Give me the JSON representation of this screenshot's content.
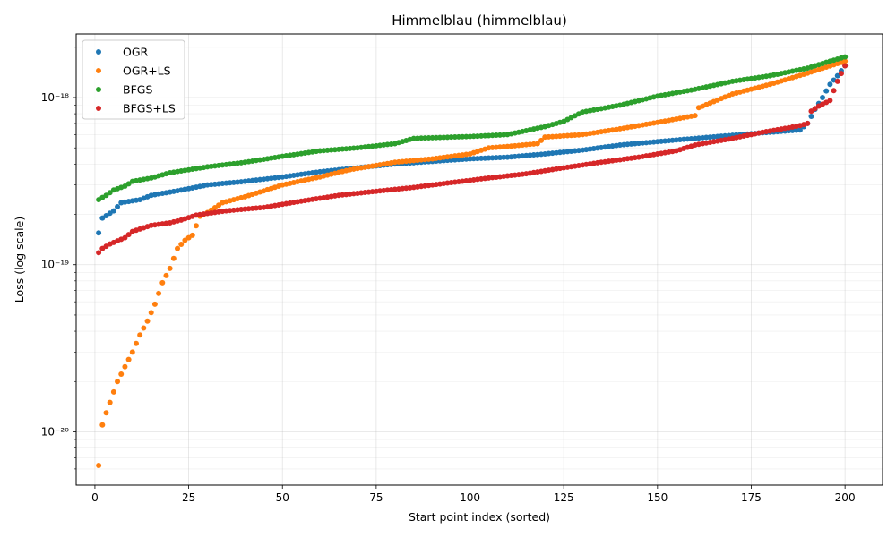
{
  "chart_data": {
    "type": "scatter",
    "title": "Himmelblau (himmelblau)",
    "xlabel": "Start point index (sorted)",
    "ylabel": "Loss (log scale)",
    "yscale": "log",
    "xlim": [
      -5,
      210
    ],
    "ylim": [
      4.8e-21,
      2.4e-18
    ],
    "xticks": [
      0,
      25,
      50,
      75,
      100,
      125,
      150,
      175,
      200
    ],
    "yticks": [
      {
        "value": 1e-20,
        "label": "10⁻²⁰"
      },
      {
        "value": 1e-19,
        "label": "10⁻¹⁹"
      },
      {
        "value": 1e-18,
        "label": "10⁻¹⁸"
      }
    ],
    "grid": true,
    "legend_position": "top-left",
    "series": [
      {
        "name": "OGR",
        "color": "#1f77b4",
        "keypoints": [
          [
            1,
            1.55e-19
          ],
          [
            2,
            1.9e-19
          ],
          [
            5,
            2.1e-19
          ],
          [
            7,
            2.35e-19
          ],
          [
            12,
            2.45e-19
          ],
          [
            15,
            2.6e-19
          ],
          [
            20,
            2.72e-19
          ],
          [
            25,
            2.85e-19
          ],
          [
            30,
            3e-19
          ],
          [
            40,
            3.15e-19
          ],
          [
            50,
            3.35e-19
          ],
          [
            60,
            3.6e-19
          ],
          [
            70,
            3.8e-19
          ],
          [
            80,
            4e-19
          ],
          [
            90,
            4.15e-19
          ],
          [
            100,
            4.3e-19
          ],
          [
            110,
            4.4e-19
          ],
          [
            120,
            4.6e-19
          ],
          [
            130,
            4.85e-19
          ],
          [
            140,
            5.2e-19
          ],
          [
            150,
            5.45e-19
          ],
          [
            160,
            5.7e-19
          ],
          [
            170,
            5.95e-19
          ],
          [
            180,
            6.2e-19
          ],
          [
            188,
            6.4e-19
          ],
          [
            190,
            7e-19
          ],
          [
            192,
            8.5e-19
          ],
          [
            194,
            1e-18
          ],
          [
            196,
            1.2e-18
          ],
          [
            198,
            1.35e-18
          ],
          [
            200,
            1.55e-18
          ]
        ]
      },
      {
        "name": "OGR+LS",
        "color": "#ff7f0e",
        "keypoints": [
          [
            1,
            6.3e-21
          ],
          [
            2,
            1.1e-20
          ],
          [
            3,
            1.3e-20
          ],
          [
            4,
            1.5e-20
          ],
          [
            6,
            2e-20
          ],
          [
            8,
            2.45e-20
          ],
          [
            10,
            3e-20
          ],
          [
            12,
            3.8e-20
          ],
          [
            14,
            4.6e-20
          ],
          [
            16,
            5.8e-20
          ],
          [
            18,
            7.8e-20
          ],
          [
            20,
            9.5e-20
          ],
          [
            22,
            1.25e-19
          ],
          [
            24,
            1.4e-19
          ],
          [
            26,
            1.5e-19
          ],
          [
            28,
            1.95e-19
          ],
          [
            30,
            2.05e-19
          ],
          [
            34,
            2.35e-19
          ],
          [
            40,
            2.55e-19
          ],
          [
            50,
            3e-19
          ],
          [
            60,
            3.35e-19
          ],
          [
            68,
            3.7e-19
          ],
          [
            80,
            4.1e-19
          ],
          [
            90,
            4.3e-19
          ],
          [
            100,
            4.6e-19
          ],
          [
            105,
            5e-19
          ],
          [
            110,
            5.1e-19
          ],
          [
            118,
            5.3e-19
          ],
          [
            120,
            5.8e-19
          ],
          [
            130,
            6e-19
          ],
          [
            140,
            6.5e-19
          ],
          [
            150,
            7.1e-19
          ],
          [
            160,
            7.8e-19
          ],
          [
            161,
            8.7e-19
          ],
          [
            170,
            1.05e-18
          ],
          [
            180,
            1.2e-18
          ],
          [
            190,
            1.4e-18
          ],
          [
            200,
            1.65e-18
          ]
        ]
      },
      {
        "name": "BFGS",
        "color": "#2ca02c",
        "keypoints": [
          [
            1,
            2.45e-19
          ],
          [
            3,
            2.6e-19
          ],
          [
            5,
            2.8e-19
          ],
          [
            8,
            2.95e-19
          ],
          [
            10,
            3.15e-19
          ],
          [
            15,
            3.3e-19
          ],
          [
            20,
            3.55e-19
          ],
          [
            30,
            3.85e-19
          ],
          [
            40,
            4.1e-19
          ],
          [
            50,
            4.45e-19
          ],
          [
            60,
            4.8e-19
          ],
          [
            70,
            5e-19
          ],
          [
            80,
            5.3e-19
          ],
          [
            85,
            5.7e-19
          ],
          [
            100,
            5.85e-19
          ],
          [
            110,
            6e-19
          ],
          [
            120,
            6.7e-19
          ],
          [
            125,
            7.2e-19
          ],
          [
            130,
            8.2e-19
          ],
          [
            140,
            9e-19
          ],
          [
            150,
            1.02e-18
          ],
          [
            160,
            1.12e-18
          ],
          [
            170,
            1.25e-18
          ],
          [
            180,
            1.35e-18
          ],
          [
            190,
            1.5e-18
          ],
          [
            196,
            1.65e-18
          ],
          [
            200,
            1.75e-18
          ]
        ]
      },
      {
        "name": "BFGS+LS",
        "color": "#d62728",
        "keypoints": [
          [
            1,
            1.18e-19
          ],
          [
            2,
            1.25e-19
          ],
          [
            4,
            1.33e-19
          ],
          [
            8,
            1.45e-19
          ],
          [
            10,
            1.58e-19
          ],
          [
            15,
            1.72e-19
          ],
          [
            20,
            1.78e-19
          ],
          [
            23,
            1.85e-19
          ],
          [
            27,
            1.98e-19
          ],
          [
            35,
            2.1e-19
          ],
          [
            45,
            2.2e-19
          ],
          [
            55,
            2.4e-19
          ],
          [
            65,
            2.6e-19
          ],
          [
            75,
            2.75e-19
          ],
          [
            85,
            2.9e-19
          ],
          [
            95,
            3.1e-19
          ],
          [
            105,
            3.3e-19
          ],
          [
            115,
            3.5e-19
          ],
          [
            125,
            3.8e-19
          ],
          [
            135,
            4.1e-19
          ],
          [
            145,
            4.4e-19
          ],
          [
            155,
            4.8e-19
          ],
          [
            160,
            5.2e-19
          ],
          [
            170,
            5.7e-19
          ],
          [
            178,
            6.2e-19
          ],
          [
            185,
            6.6e-19
          ],
          [
            188,
            6.8e-19
          ],
          [
            190,
            7e-19
          ],
          [
            191,
            8.3e-19
          ],
          [
            193,
            8.9e-19
          ],
          [
            196,
            9.6e-19
          ],
          [
            197,
            1.1e-18
          ],
          [
            198,
            1.25e-18
          ],
          [
            200,
            1.55e-18
          ]
        ]
      }
    ]
  }
}
